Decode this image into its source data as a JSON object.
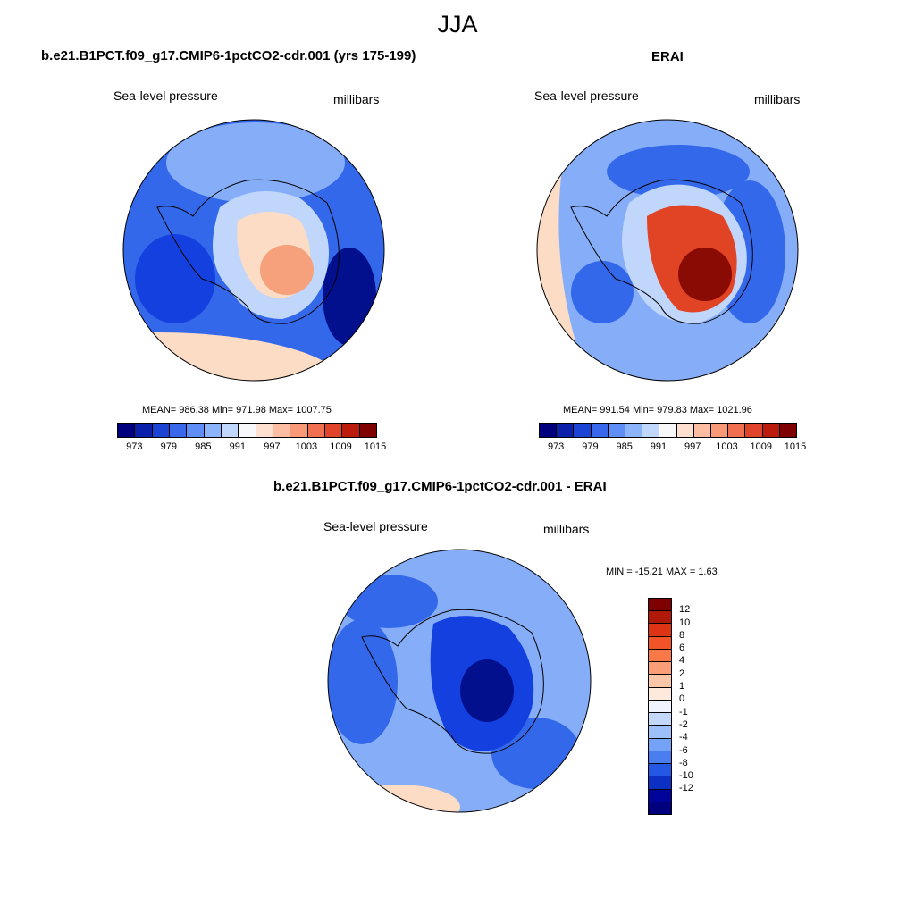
{
  "title": "JJA",
  "panels": [
    {
      "title": "b.e21.B1PCT.f09_g17.CMIP6-1pctCO2-cdr.001 (yrs 175-199)",
      "variable": "Sea-level pressure",
      "units": "millibars",
      "stats": "MEAN= 986.38  Min= 971.98  Max= 1007.75"
    },
    {
      "title": "ERAI",
      "variable": "Sea-level pressure",
      "units": "millibars",
      "stats": "MEAN= 991.54  Min= 979.83  Max= 1021.96"
    },
    {
      "title": "b.e21.B1PCT.f09_g17.CMIP6-1pctCO2-cdr.001 - ERAI",
      "variable": "Sea-level pressure",
      "units": "millibars",
      "stats": "MIN = -15.21 MAX =   1.63"
    }
  ],
  "colorbar": {
    "colors": [
      "#00007f",
      "#0a20aa",
      "#1c44d4",
      "#3a68ec",
      "#5e8ef6",
      "#8cb4fb",
      "#c0d8fd",
      "#f8f8fb",
      "#fde0d0",
      "#fcbda3",
      "#f89a78",
      "#f07050",
      "#e0442a",
      "#bc1c0c",
      "#7f0000"
    ],
    "labels": [
      "973",
      "979",
      "985",
      "991",
      "997",
      "1003",
      "1009",
      "1015"
    ]
  },
  "diff_colorbar": {
    "colors": [
      "#7f0000",
      "#b01808",
      "#dc3414",
      "#f25428",
      "#f87848",
      "#fb9e78",
      "#fcc6a8",
      "#fdeadc",
      "#f0f4fc",
      "#c4d8fc",
      "#9cc0fa",
      "#74a2f6",
      "#4a7ef0",
      "#2458e4",
      "#0c30c4",
      "#00049a",
      "#00007f"
    ],
    "labels": [
      "12",
      "10",
      "8",
      "6",
      "4",
      "2",
      "1",
      "0",
      "-1",
      "-2",
      "-4",
      "-6",
      "-8",
      "-10",
      "-12"
    ]
  },
  "map_colors": {
    "ocean_deep": "#1440e0",
    "ocean_mid": "#3468ea",
    "ocean_light": "#86aef8",
    "ocean_pale": "#c0d6fb",
    "warm_pale": "#fcdcc4",
    "warm_mid": "#f6a07c",
    "warm_strong": "#e04424",
    "warm_dark": "#8a0a04",
    "cold_dark": "#02108e",
    "white": "#f4f6fc"
  }
}
